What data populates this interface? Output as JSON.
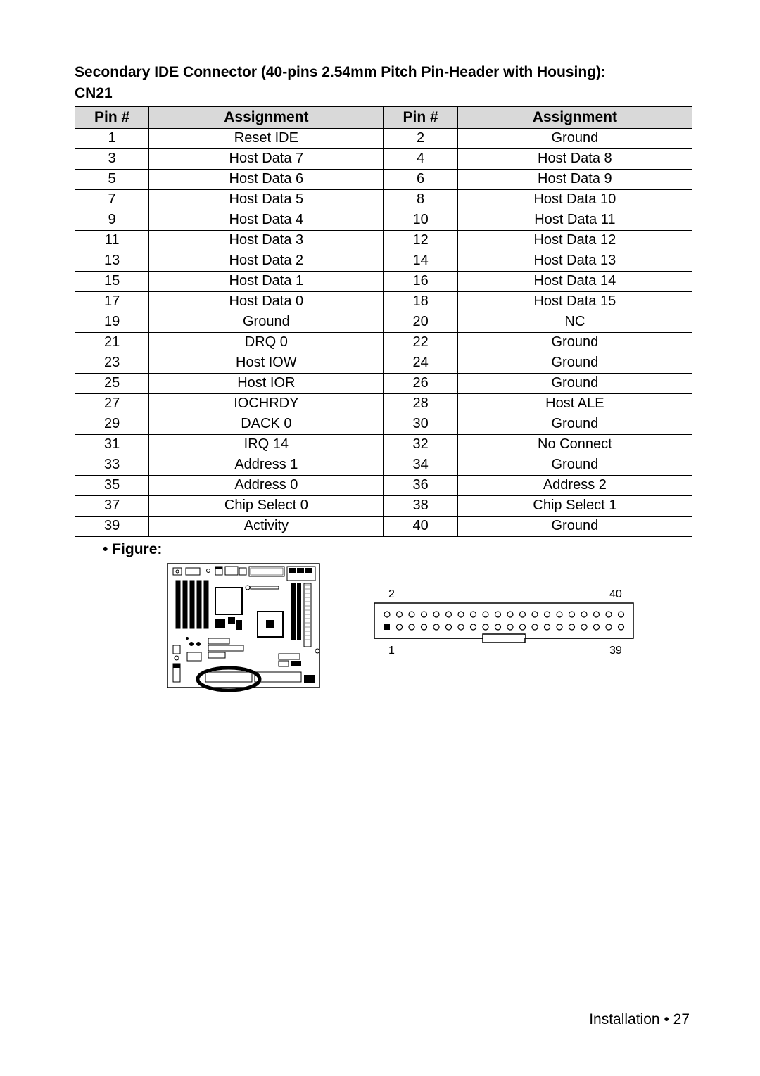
{
  "title_line1": "Secondary IDE Connector (40-pins 2.54mm Pitch Pin-Header with Housing):",
  "title_line2": "CN21",
  "headers": {
    "pin": "Pin #",
    "assignment": "Assignment"
  },
  "rows": [
    {
      "p1": "1",
      "a1": "Reset IDE",
      "p2": "2",
      "a2": "Ground"
    },
    {
      "p1": "3",
      "a1": "Host Data 7",
      "p2": "4",
      "a2": "Host Data 8"
    },
    {
      "p1": "5",
      "a1": "Host Data 6",
      "p2": "6",
      "a2": "Host Data 9"
    },
    {
      "p1": "7",
      "a1": "Host Data 5",
      "p2": "8",
      "a2": "Host Data 10"
    },
    {
      "p1": "9",
      "a1": "Host Data 4",
      "p2": "10",
      "a2": "Host Data 11"
    },
    {
      "p1": "11",
      "a1": "Host Data 3",
      "p2": "12",
      "a2": "Host Data 12"
    },
    {
      "p1": "13",
      "a1": "Host Data 2",
      "p2": "14",
      "a2": "Host Data 13"
    },
    {
      "p1": "15",
      "a1": "Host Data 1",
      "p2": "16",
      "a2": "Host Data 14"
    },
    {
      "p1": "17",
      "a1": "Host Data 0",
      "p2": "18",
      "a2": "Host Data 15"
    },
    {
      "p1": "19",
      "a1": "Ground",
      "p2": "20",
      "a2": "NC"
    },
    {
      "p1": "21",
      "a1": "DRQ 0",
      "p2": "22",
      "a2": "Ground"
    },
    {
      "p1": "23",
      "a1": "Host IOW",
      "p2": "24",
      "a2": "Ground"
    },
    {
      "p1": "25",
      "a1": "Host IOR",
      "p2": "26",
      "a2": "Ground"
    },
    {
      "p1": "27",
      "a1": "IOCHRDY",
      "p2": "28",
      "a2": "Host ALE"
    },
    {
      "p1": "29",
      "a1": "DACK 0",
      "p2": "30",
      "a2": "Ground"
    },
    {
      "p1": "31",
      "a1": "IRQ 14",
      "p2": "32",
      "a2": "No Connect"
    },
    {
      "p1": "33",
      "a1": "Address 1",
      "p2": "34",
      "a2": "Ground"
    },
    {
      "p1": "35",
      "a1": "Address 0",
      "p2": "36",
      "a2": "Address 2"
    },
    {
      "p1": "37",
      "a1": "Chip Select 0",
      "p2": "38",
      "a2": "Chip Select 1"
    },
    {
      "p1": "39",
      "a1": "Activity",
      "p2": "40",
      "a2": "Ground"
    }
  ],
  "figure_label": "Figure:",
  "connector": {
    "pin_labels": {
      "tl": "2",
      "tr": "40",
      "bl": "1",
      "br": "39"
    },
    "top_pins": 20,
    "bottom_pins": 20,
    "background": "#ffffff",
    "border": "#000000"
  },
  "footer": {
    "section": "Installation",
    "bullet": "•",
    "page": "27"
  },
  "colors": {
    "header_bg": "#d9d9d9",
    "border": "#000000",
    "text": "#000000",
    "page_bg": "#ffffff"
  },
  "fonts": {
    "title_size_pt": 16,
    "cell_size_pt": 15,
    "footer_size_pt": 16,
    "family": "Arial"
  }
}
